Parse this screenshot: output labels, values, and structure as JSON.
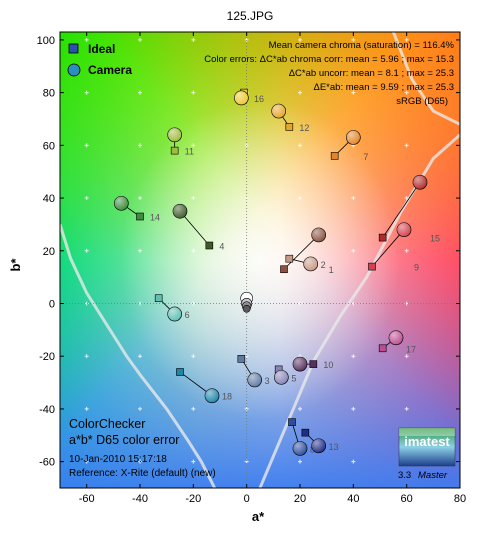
{
  "title": "125.JPG",
  "chart_data": {
    "type": "scatter",
    "xlabel": "a*",
    "ylabel": "b*",
    "xlim": [
      -70,
      80
    ],
    "ylim": [
      -70,
      103
    ],
    "xticks": [
      -60,
      -40,
      -20,
      0,
      20,
      40,
      60,
      80
    ],
    "yticks": [
      -60,
      -40,
      -20,
      0,
      20,
      40,
      60,
      80,
      100
    ],
    "grid": false,
    "legend_position": "top-left",
    "legend": [
      {
        "name": "Ideal",
        "marker": "square"
      },
      {
        "name": "Camera",
        "marker": "circle"
      }
    ],
    "patches": [
      {
        "id": "1",
        "ideal": [
          14,
          13
        ],
        "camera": [
          27,
          26
        ],
        "color": "#8a5240"
      },
      {
        "id": "2",
        "ideal": [
          16,
          17
        ],
        "camera": [
          24,
          15
        ],
        "color": "#c89a85"
      },
      {
        "id": "3",
        "ideal": [
          -2,
          -21
        ],
        "camera": [
          3,
          -29
        ],
        "color": "#5e7aa3"
      },
      {
        "id": "4",
        "ideal": [
          -14,
          22
        ],
        "camera": [
          -25,
          35
        ],
        "color": "#3f5a2a"
      },
      {
        "id": "5",
        "ideal": [
          12,
          -25
        ],
        "camera": [
          13,
          -28
        ],
        "color": "#8884b7"
      },
      {
        "id": "6",
        "ideal": [
          -33,
          2
        ],
        "camera": [
          -27,
          -4
        ],
        "color": "#5fbfb2"
      },
      {
        "id": "7",
        "ideal": [
          33,
          56
        ],
        "camera": [
          40,
          63
        ],
        "color": "#e48427"
      },
      {
        "id": "8",
        "ideal": [
          17,
          -45
        ],
        "camera": [
          20,
          -55
        ],
        "color": "#2e4c9c"
      },
      {
        "id": "9",
        "ideal": [
          47,
          14
        ],
        "camera": [
          59,
          28
        ],
        "color": "#d4404d"
      },
      {
        "id": "10",
        "ideal": [
          25,
          -23
        ],
        "camera": [
          20,
          -23
        ],
        "color": "#57305f"
      },
      {
        "id": "11",
        "ideal": [
          -27,
          58
        ],
        "camera": [
          -27,
          64
        ],
        "color": "#9fbc3a"
      },
      {
        "id": "12",
        "ideal": [
          16,
          67
        ],
        "camera": [
          12,
          73
        ],
        "color": "#e4a72c"
      },
      {
        "id": "13",
        "ideal": [
          22,
          -49
        ],
        "camera": [
          27,
          -54
        ],
        "color": "#1f2c88"
      },
      {
        "id": "14",
        "ideal": [
          -40,
          33
        ],
        "camera": [
          -47,
          38
        ],
        "color": "#3d8b3e"
      },
      {
        "id": "15",
        "ideal": [
          51,
          25
        ],
        "camera": [
          65,
          46
        ],
        "color": "#b02a2b"
      },
      {
        "id": "16",
        "ideal": [
          -1,
          80
        ],
        "camera": [
          -2,
          78
        ],
        "color": "#ecc82c"
      },
      {
        "id": "17",
        "ideal": [
          51,
          -17
        ],
        "camera": [
          56,
          -13
        ],
        "color": "#bf4b91"
      },
      {
        "id": "18",
        "ideal": [
          -25,
          -26
        ],
        "camera": [
          -13,
          -35
        ],
        "color": "#1c86a8"
      }
    ],
    "neutral_points": [
      [
        0,
        2
      ],
      [
        0,
        0
      ],
      [
        0,
        -1
      ],
      [
        0,
        -2
      ]
    ],
    "info": {
      "line1": "Mean camera chroma (saturation) = 116.4%",
      "line2": "Color errors: ΔC*ab chroma corr:  mean = 5.96 ;  max = 15.3",
      "line3": "ΔC*ab uncorr:  mean = 8.1 ;  max = 25.3",
      "line4": "ΔE*ab:  mean = 9.59 ;  max = 25.3",
      "line5": "sRGB (D65)"
    },
    "annotations": {
      "chart_name": "ColorChecker",
      "chart_sub": "a*b* D65 color error",
      "date": "10-Jan-2010 15:17:18",
      "reference": "Reference: X-Rite (default) (new)",
      "brand": "imatest",
      "version": "3.3",
      "edition": "Master"
    },
    "colors": {
      "connector": "#000000",
      "gamut_line": "#e8e8e8"
    }
  }
}
